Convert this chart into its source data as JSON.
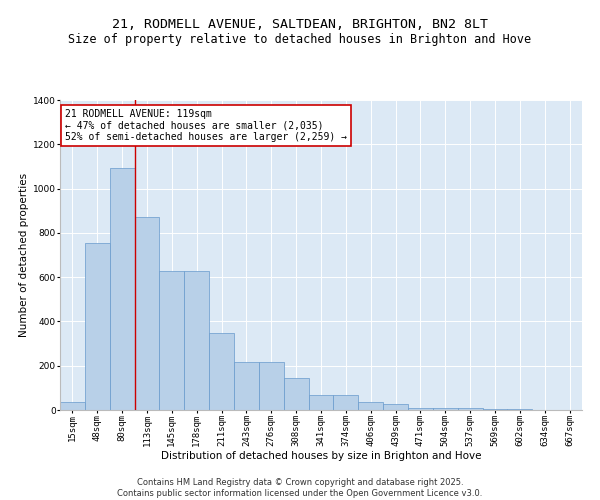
{
  "title_line1": "21, RODMELL AVENUE, SALTDEAN, BRIGHTON, BN2 8LT",
  "title_line2": "Size of property relative to detached houses in Brighton and Hove",
  "xlabel": "Distribution of detached houses by size in Brighton and Hove",
  "ylabel": "Number of detached properties",
  "categories": [
    "15sqm",
    "48sqm",
    "80sqm",
    "113sqm",
    "145sqm",
    "178sqm",
    "211sqm",
    "243sqm",
    "276sqm",
    "308sqm",
    "341sqm",
    "374sqm",
    "406sqm",
    "439sqm",
    "471sqm",
    "504sqm",
    "537sqm",
    "569sqm",
    "602sqm",
    "634sqm",
    "667sqm"
  ],
  "bar_values": [
    35,
    755,
    1095,
    870,
    630,
    630,
    350,
    215,
    215,
    145,
    70,
    70,
    35,
    25,
    10,
    10,
    7,
    5,
    3,
    2,
    2
  ],
  "bar_color": "#b8d0e8",
  "bar_edgecolor": "#6699cc",
  "background_color": "#dce9f5",
  "annotation_line1": "21 RODMELL AVENUE: 119sqm",
  "annotation_line2": "← 47% of detached houses are smaller (2,035)",
  "annotation_line3": "52% of semi-detached houses are larger (2,259) →",
  "vline_x": 2.5,
  "vline_color": "#cc0000",
  "box_edgecolor": "#cc0000",
  "ylim": [
    0,
    1400
  ],
  "yticks": [
    0,
    200,
    400,
    600,
    800,
    1000,
    1200,
    1400
  ],
  "footer_line1": "Contains HM Land Registry data © Crown copyright and database right 2025.",
  "footer_line2": "Contains public sector information licensed under the Open Government Licence v3.0.",
  "title_fontsize": 9.5,
  "subtitle_fontsize": 8.5,
  "axis_label_fontsize": 7.5,
  "tick_fontsize": 6.5,
  "annotation_fontsize": 7,
  "footer_fontsize": 6
}
